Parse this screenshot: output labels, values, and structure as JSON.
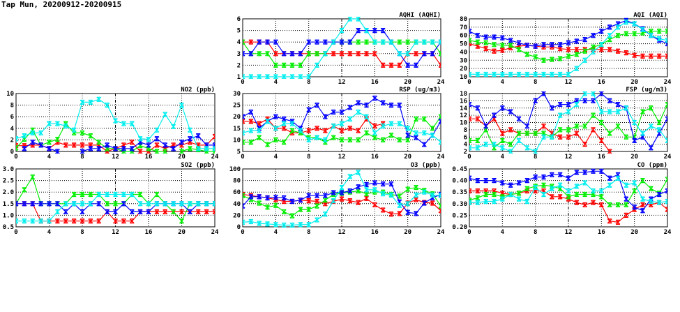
{
  "page_title": "Tap Mun, 20200912-20200915",
  "series_colors": [
    "#ff0000",
    "#00ee00",
    "#0000ff",
    "#00eeee"
  ],
  "chart_data": [
    {
      "id": "aqhi",
      "type": "line",
      "title": "AQHI (AQHI)",
      "xticks": [
        0,
        4,
        8,
        12,
        16,
        20,
        24
      ],
      "ylim": [
        1,
        6
      ],
      "yticks": [
        "1",
        "2",
        "3",
        "4",
        "5",
        "6"
      ],
      "grid": true,
      "series": [
        {
          "name": "day-red",
          "values": [
            4,
            4,
            4,
            4,
            3,
            3,
            3,
            3,
            3,
            3,
            3,
            3,
            3,
            3,
            3,
            3,
            3,
            2,
            2,
            2,
            3,
            3,
            3,
            3,
            2
          ]
        },
        {
          "name": "day-green",
          "values": [
            4,
            3,
            3,
            3,
            2,
            2,
            2,
            2,
            3,
            3,
            3,
            4,
            4,
            4,
            4,
            4,
            4,
            4,
            4,
            4,
            4,
            4,
            4,
            4,
            3
          ]
        },
        {
          "name": "day-blue",
          "values": [
            3,
            3,
            4,
            4,
            4,
            3,
            3,
            3,
            4,
            4,
            4,
            4,
            4,
            4,
            5,
            5,
            5,
            5,
            4,
            3,
            2,
            2,
            3,
            3,
            4
          ]
        },
        {
          "name": "day-cyan",
          "values": [
            1,
            1,
            1,
            1,
            1,
            1,
            1,
            1,
            1,
            2,
            3,
            4,
            5,
            6,
            6,
            5,
            4,
            4,
            4,
            3,
            3,
            4,
            4,
            4,
            4
          ]
        }
      ]
    },
    {
      "id": "aqi",
      "type": "line",
      "title": "AQI (AQI)",
      "xticks": [
        0,
        4,
        8,
        12,
        16,
        20,
        24
      ],
      "ylim": [
        10,
        80
      ],
      "yticks": [
        "10",
        "20",
        "30",
        "40",
        "50",
        "60",
        "70",
        "80"
      ],
      "grid": true,
      "series": [
        {
          "name": "day-red",
          "values": [
            50,
            47,
            44,
            41,
            42,
            45,
            47,
            48,
            47,
            46,
            46,
            44,
            43,
            43,
            43,
            43,
            43,
            43,
            41,
            39,
            36,
            35,
            35,
            35,
            35
          ]
        },
        {
          "name": "day-green",
          "values": [
            54,
            52,
            51,
            49,
            48,
            48,
            43,
            37,
            34,
            30,
            31,
            32,
            35,
            37,
            41,
            46,
            49,
            55,
            60,
            62,
            62,
            63,
            65,
            65,
            65
          ]
        },
        {
          "name": "day-blue",
          "values": [
            65,
            60,
            58,
            58,
            57,
            54,
            51,
            48,
            47,
            49,
            49,
            49,
            51,
            53,
            55,
            60,
            65,
            70,
            74,
            78,
            74,
            68,
            60,
            54,
            50
          ]
        },
        {
          "name": "day-cyan",
          "values": [
            13,
            13,
            13,
            13,
            13,
            13,
            13,
            13,
            13,
            13,
            13,
            13,
            13,
            20,
            30,
            40,
            49,
            60,
            70,
            76,
            74,
            67,
            60,
            56,
            54
          ]
        }
      ]
    },
    {
      "id": "no2",
      "type": "line",
      "title": "NO2 (ppb)",
      "xticks": [
        0,
        4,
        8,
        12,
        16,
        20,
        24
      ],
      "ylim": [
        0,
        10
      ],
      "yticks": [
        "0",
        "2",
        "4",
        "6",
        "8",
        "10"
      ],
      "grid": true,
      "series": [
        {
          "name": "day-red",
          "values": [
            1,
            1,
            1.1,
            1.1,
            0.5,
            1.6,
            1.1,
            1.1,
            1.1,
            1.1,
            1.1,
            0,
            0.5,
            1.1,
            1.6,
            0,
            0,
            1.1,
            0.5,
            1.1,
            1.1,
            1.6,
            1.1,
            1.1,
            2.6
          ]
        },
        {
          "name": "day-green",
          "values": [
            0.6,
            2.1,
            3.7,
            1.1,
            1.6,
            2.1,
            4.8,
            3.2,
            3.2,
            2.7,
            1.6,
            0.5,
            0.5,
            0,
            0,
            1,
            0.5,
            0,
            0,
            null,
            0,
            0.5,
            0.3,
            0,
            0
          ]
        },
        {
          "name": "day-blue",
          "values": [
            null,
            0.5,
            1.6,
            1.1,
            0.5,
            0,
            null,
            null,
            0,
            0.5,
            0.5,
            1.1,
            0.5,
            0.5,
            0.5,
            1.6,
            1.1,
            2.2,
            1.1,
            0.5,
            1.6,
            2.2,
            2.7,
            1.1,
            1.1
          ]
        },
        {
          "name": "day-cyan",
          "values": [
            2.2,
            2.7,
            3.2,
            3.2,
            4.8,
            4.8,
            4.4,
            3.7,
            8.5,
            8.5,
            9,
            8,
            5.3,
            4.8,
            4.8,
            2.2,
            2.1,
            3.7,
            6.4,
            4.3,
            8,
            3.7,
            0.5,
            0.5,
            0.5
          ]
        }
      ]
    },
    {
      "id": "rsp",
      "type": "line",
      "title": "RSP (ug/m3)",
      "xticks": [
        0,
        4,
        8,
        12,
        16,
        20,
        24
      ],
      "ylim": [
        5,
        30
      ],
      "yticks": [
        "5",
        "10",
        "15",
        "20",
        "25",
        "30"
      ],
      "grid": true,
      "series": [
        {
          "name": "day-red",
          "values": [
            18,
            18,
            17,
            19,
            15,
            15,
            13,
            13,
            14,
            15,
            14,
            16,
            14,
            15,
            14,
            19,
            16,
            17,
            null,
            null,
            null,
            null,
            null,
            null,
            null
          ]
        },
        {
          "name": "day-green",
          "values": [
            9,
            9,
            11,
            8,
            10,
            9,
            14,
            13,
            11,
            11,
            9,
            11,
            10,
            10,
            10,
            13,
            11,
            10,
            12,
            10,
            10,
            19,
            19,
            15,
            20
          ]
        },
        {
          "name": "day-blue",
          "values": [
            20,
            22,
            15,
            18,
            20,
            19,
            18,
            15,
            23,
            25,
            20,
            22,
            22,
            24,
            26,
            25,
            28,
            26,
            25,
            25,
            12,
            11,
            8,
            12,
            18
          ]
        },
        {
          "name": "day-cyan",
          "values": [
            13,
            14,
            14,
            18,
            15,
            17,
            17,
            14,
            10,
            11,
            10,
            16,
            17,
            19,
            22,
            20,
            13,
            16,
            17,
            17,
            15,
            13,
            13,
            12,
            9
          ]
        }
      ]
    },
    {
      "id": "fsp",
      "type": "line",
      "title": "FSP (ug/m3)",
      "xticks": [
        0,
        4,
        8,
        12,
        16,
        20,
        24
      ],
      "ylim": [
        2,
        18
      ],
      "yticks": [
        "2",
        "4",
        "6",
        "8",
        "10",
        "12",
        "14",
        "16",
        "18"
      ],
      "grid": true,
      "series": [
        {
          "name": "day-red",
          "values": [
            11,
            11,
            9,
            11,
            7,
            8,
            7,
            7,
            7,
            9,
            7,
            6,
            6,
            7,
            4,
            8,
            5,
            2,
            null,
            null,
            null,
            null,
            null,
            null,
            null
          ]
        },
        {
          "name": "day-green",
          "values": [
            5,
            5,
            8,
            3,
            5,
            4,
            7,
            7,
            7,
            7,
            6,
            8,
            8,
            9,
            9,
            12,
            10,
            7,
            9,
            6,
            6,
            13,
            14,
            10,
            15
          ]
        },
        {
          "name": "day-blue",
          "values": [
            15,
            14,
            9,
            12,
            14,
            13,
            11,
            9,
            16,
            18,
            14,
            15,
            15,
            16,
            16,
            16,
            18,
            16,
            15,
            14,
            5,
            6,
            3,
            7,
            11
          ]
        },
        {
          "name": "day-cyan",
          "values": [
            3,
            3,
            4,
            4,
            3,
            2,
            5,
            3,
            2,
            6,
            6,
            12,
            13,
            15,
            18,
            18,
            13,
            13,
            13,
            14,
            10,
            7,
            9,
            8,
            5
          ]
        }
      ]
    },
    {
      "id": "so2",
      "type": "line",
      "title": "SO2 (ppb)",
      "xticks": [
        0,
        4,
        8,
        12,
        16,
        20,
        24
      ],
      "ylim": [
        0.5,
        3.0
      ],
      "yticks": [
        "0.5",
        "1.0",
        "1.5",
        "2.0",
        "2.5",
        "3.0"
      ],
      "grid": true,
      "series": [
        {
          "name": "day-red",
          "values": [
            1.5,
            1.5,
            1.5,
            0.75,
            0.75,
            0.75,
            0.75,
            0.75,
            0.75,
            0.75,
            0.75,
            1.15,
            0.75,
            0.75,
            0.75,
            1.15,
            1.15,
            1.15,
            1.15,
            1.15,
            1.15,
            1.15,
            1.15,
            1.15,
            1.15
          ]
        },
        {
          "name": "day-green",
          "values": [
            1.5,
            2.1,
            2.65,
            1.5,
            1.5,
            1.5,
            1.5,
            1.9,
            1.9,
            1.9,
            1.9,
            1.5,
            1.5,
            1.5,
            1.9,
            1.9,
            1.5,
            1.9,
            1.5,
            1.15,
            0.75,
            1.5,
            1.5,
            1.5,
            1.5
          ]
        },
        {
          "name": "day-blue",
          "values": [
            1.5,
            1.5,
            1.5,
            1.5,
            1.5,
            1.5,
            1.15,
            1.5,
            1.15,
            1.5,
            1.5,
            1.15,
            1.15,
            1.5,
            1.15,
            1.15,
            1.15,
            1.5,
            1.5,
            1.5,
            1.5,
            1.15,
            1.5,
            1.5,
            1.5
          ]
        },
        {
          "name": "day-cyan",
          "values": [
            0.75,
            0.75,
            0.75,
            0.75,
            0.75,
            1.15,
            1.5,
            1.5,
            1.5,
            1.5,
            1.9,
            1.9,
            1.9,
            1.9,
            1.9,
            1.5,
            1.5,
            1.5,
            1.5,
            1.5,
            1.5,
            1.5,
            1.5,
            1.5,
            1.5
          ]
        }
      ]
    },
    {
      "id": "o3",
      "type": "line",
      "title": "O3 (ppb)",
      "xticks": [
        0,
        4,
        8,
        12,
        16,
        20,
        24
      ],
      "ylim": [
        0,
        100
      ],
      "yticks": [
        "0",
        "20",
        "40",
        "60",
        "80",
        "100"
      ],
      "grid": true,
      "series": [
        {
          "name": "day-red",
          "values": [
            56,
            54,
            52,
            50,
            47,
            44,
            44,
            46,
            45,
            44,
            40,
            44,
            48,
            45,
            42,
            49,
            38,
            29,
            22,
            23,
            41,
            47,
            42,
            41,
            28
          ]
        },
        {
          "name": "day-green",
          "values": [
            54,
            47,
            41,
            34,
            37,
            26,
            19,
            30,
            30,
            36,
            46,
            56,
            58,
            60,
            62,
            57,
            60,
            60,
            56,
            53,
            65,
            68,
            63,
            57,
            36
          ]
        },
        {
          "name": "day-blue",
          "values": [
            36,
            52,
            52,
            50,
            51,
            50,
            44,
            46,
            54,
            54,
            54,
            59,
            59,
            62,
            69,
            73,
            76,
            74,
            74,
            43,
            25,
            23,
            41,
            50,
            56
          ]
        },
        {
          "name": "day-cyan",
          "values": [
            8,
            9,
            6,
            5,
            4,
            3,
            3,
            4,
            4,
            12,
            22,
            45,
            68,
            87,
            94,
            64,
            64,
            57,
            55,
            37,
            40,
            55,
            60,
            55,
            54
          ]
        }
      ]
    },
    {
      "id": "co",
      "type": "line",
      "title": "CO (ppm)",
      "xticks": [
        0,
        4,
        8,
        12,
        16,
        20,
        24
      ],
      "ylim": [
        0.2,
        0.45
      ],
      "yticks": [
        "0.20",
        "0.25",
        "0.30",
        "0.35",
        "0.40",
        "0.45"
      ],
      "grid": true,
      "series": [
        {
          "name": "day-red",
          "values": [
            0.355,
            0.355,
            0.355,
            0.355,
            0.345,
            0.34,
            0.345,
            0.355,
            0.355,
            0.355,
            0.33,
            0.33,
            0.32,
            0.305,
            0.295,
            0.305,
            0.295,
            0.225,
            0.22,
            0.25,
            0.275,
            0.295,
            0.295,
            0.305,
            0.275
          ]
        },
        {
          "name": "day-green",
          "values": [
            0.315,
            0.325,
            0.34,
            0.34,
            0.33,
            0.34,
            0.345,
            0.365,
            0.375,
            0.38,
            0.375,
            0.365,
            0.33,
            0.34,
            0.34,
            0.34,
            0.33,
            0.295,
            0.295,
            0.295,
            0.355,
            0.4,
            0.365,
            0.345,
            0.405
          ]
        },
        {
          "name": "day-blue",
          "values": [
            0.41,
            0.4,
            0.4,
            0.4,
            0.39,
            0.38,
            0.39,
            0.4,
            0.415,
            0.415,
            0.425,
            0.425,
            0.41,
            0.435,
            0.435,
            0.44,
            0.44,
            0.41,
            0.425,
            0.32,
            0.285,
            0.27,
            0.32,
            0.34,
            0.355
          ]
        },
        {
          "name": "day-cyan",
          "values": [
            0.305,
            0.305,
            0.31,
            0.31,
            0.32,
            0.34,
            0.32,
            0.31,
            0.37,
            0.34,
            0.365,
            0.38,
            0.355,
            0.375,
            0.39,
            0.355,
            0.355,
            0.38,
            0.41,
            0.38,
            0.39,
            0.32,
            0.31,
            0.305,
            0.31
          ]
        }
      ]
    }
  ]
}
